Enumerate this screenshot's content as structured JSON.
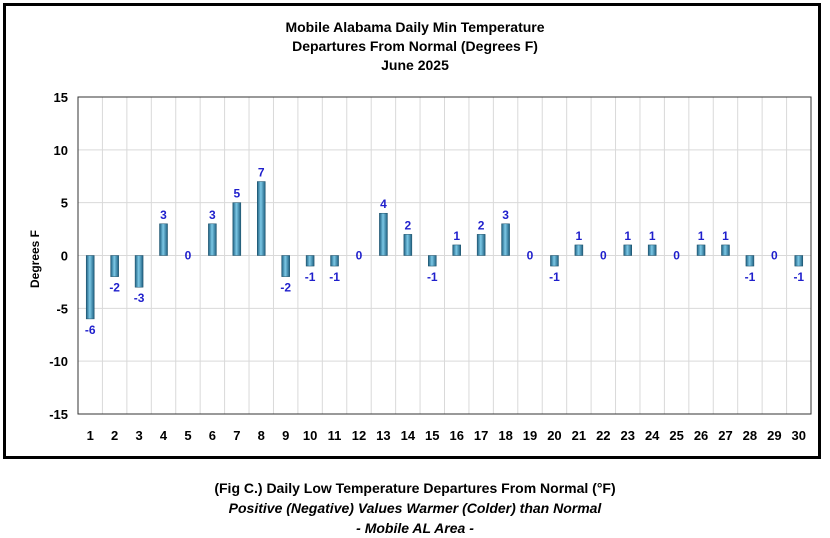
{
  "chart_data": {
    "type": "bar",
    "title": [
      "Mobile Alabama Daily Min Temperature",
      "Departures From Normal (Degrees F)",
      "June 2025"
    ],
    "ylabel": "Degrees F",
    "xlabel": "",
    "ylim": [
      -15,
      15
    ],
    "yticks": [
      15,
      10,
      5,
      0,
      -5,
      -10,
      -15
    ],
    "grid": true,
    "categories": [
      "1",
      "2",
      "3",
      "4",
      "5",
      "6",
      "7",
      "8",
      "9",
      "10",
      "11",
      "12",
      "13",
      "14",
      "15",
      "16",
      "17",
      "18",
      "19",
      "20",
      "21",
      "22",
      "23",
      "24",
      "25",
      "26",
      "27",
      "28",
      "29",
      "30"
    ],
    "values": [
      -6,
      -2,
      -3,
      3,
      0,
      3,
      5,
      7,
      -2,
      -1,
      -1,
      0,
      4,
      2,
      -1,
      1,
      2,
      3,
      0,
      -1,
      1,
      0,
      1,
      1,
      0,
      1,
      1,
      -1,
      0,
      -1
    ],
    "bar_color": "#3a9cc4",
    "label_color": "#1f1fcc"
  },
  "caption": {
    "line1": "(Fig C.) Daily Low Temperature Departures From Normal (°F)",
    "line2": "Positive (Negative) Values Warmer (Colder) than Normal",
    "line3": "- Mobile AL Area -"
  }
}
